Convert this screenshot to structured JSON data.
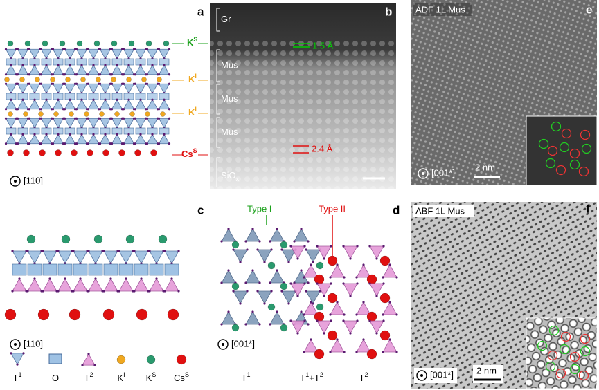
{
  "panels": {
    "a": {
      "label": "a",
      "k_s": {
        "parts": [
          {
            "text": "K"
          },
          {
            "text": "S",
            "sup": true
          }
        ]
      },
      "k_i_upper": {
        "parts": [
          {
            "text": "K"
          },
          {
            "text": "I",
            "sup": true
          }
        ]
      },
      "k_i_lower": {
        "parts": [
          {
            "text": "K"
          },
          {
            "text": "I",
            "sup": true
          }
        ]
      },
      "cs_s": {
        "parts": [
          {
            "text": "Cs"
          },
          {
            "text": "S",
            "sup": true
          }
        ]
      },
      "zone_axis": "[110]"
    },
    "b": {
      "label": "b",
      "layers": [
        "Gr",
        "Mus",
        "Mus",
        "Mus"
      ],
      "substrate": {
        "parts": [
          {
            "text": "SiO"
          },
          {
            "text": "x",
            "sub": true
          }
        ]
      },
      "spacing_top": "1.5 Å",
      "spacing_bottom": "2.4 Å"
    },
    "c": {
      "label": "c",
      "zone_axis": "[110]",
      "legend": [
        {
          "parts": [
            {
              "text": "T"
            },
            {
              "text": "1",
              "sup": true
            }
          ]
        },
        {
          "parts": [
            {
              "text": "O"
            }
          ]
        },
        {
          "parts": [
            {
              "text": "T"
            },
            {
              "text": "2",
              "sup": true
            }
          ]
        },
        {
          "parts": [
            {
              "text": "K"
            },
            {
              "text": "I",
              "sup": true
            }
          ]
        },
        {
          "parts": [
            {
              "text": "K"
            },
            {
              "text": "S",
              "sup": true
            }
          ]
        },
        {
          "parts": [
            {
              "text": "Cs"
            },
            {
              "text": "S",
              "sup": true
            }
          ]
        }
      ]
    },
    "d": {
      "label": "d",
      "type_1": "Type I",
      "type_2": "Type II",
      "zone_axis": "[001*]",
      "regions": [
        {
          "parts": [
            {
              "text": "T"
            },
            {
              "text": "1",
              "sup": true
            }
          ]
        },
        {
          "parts": [
            {
              "text": "T"
            },
            {
              "text": "1",
              "sup": true
            },
            {
              "text": "+T"
            },
            {
              "text": "2",
              "sup": true
            }
          ]
        },
        {
          "parts": [
            {
              "text": "T"
            },
            {
              "text": "2",
              "sup": true
            }
          ]
        }
      ]
    },
    "e": {
      "label": "e",
      "mode": "ADF  1L Mus",
      "scale_bar": "2 nm",
      "zone_axis": "[001*]"
    },
    "f": {
      "label": "f",
      "mode": "ABF  1L Mus",
      "scale_bar": "2 nm",
      "zone_axis": "[001*]"
    }
  }
}
